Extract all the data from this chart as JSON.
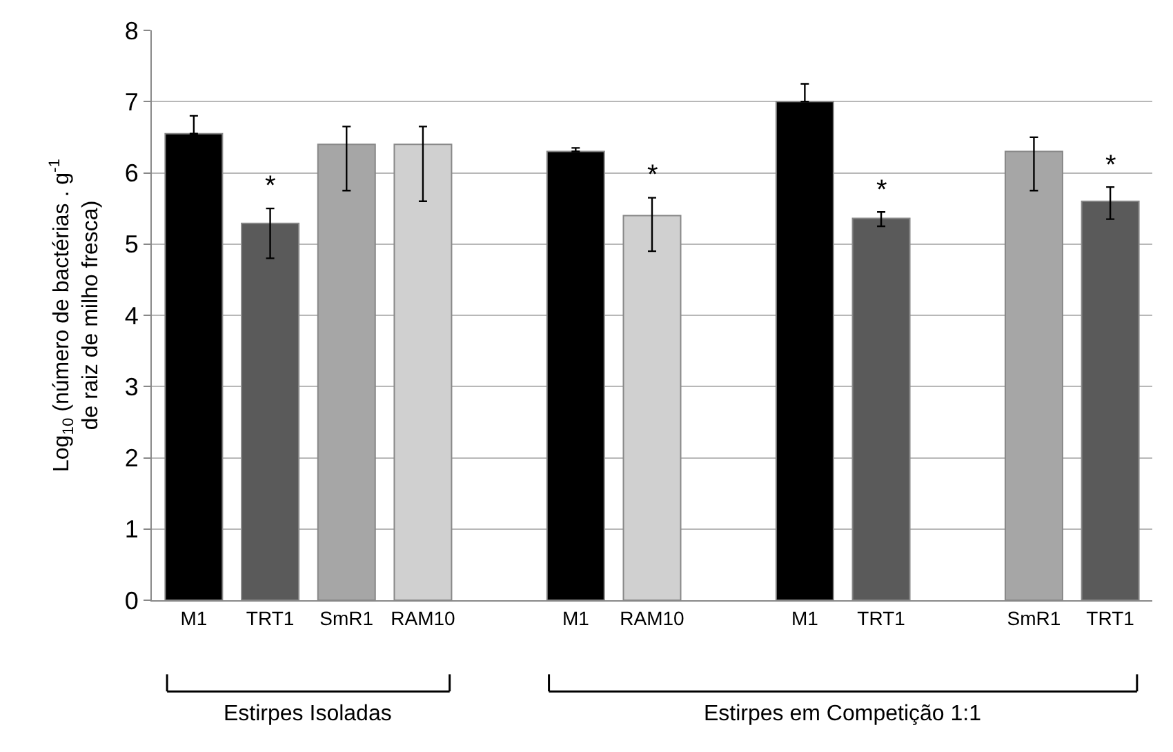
{
  "chart_data": {
    "type": "bar",
    "ylabel": "Log$_{10}$ (número de bactérias . g$^{-1}$ de raiz de milho fresca)",
    "categories": [
      "M1",
      "TRT1",
      "SmR1",
      "RAM10",
      null,
      "M1",
      "RAM10",
      null,
      "M1",
      "TRT1",
      null,
      "SmR1",
      "TRT1"
    ],
    "values": [
      6.55,
      5.29,
      6.4,
      6.4,
      null,
      6.3,
      5.4,
      null,
      7.0,
      5.36,
      null,
      6.3,
      5.6
    ],
    "colors": [
      "#000000",
      "#5a5a5a",
      "#a6a6a6",
      "#d0d0d0",
      null,
      "#000000",
      "#d0d0d0",
      null,
      "#000000",
      "#5a5a5a",
      null,
      "#a6a6a6",
      "#5a5a5a"
    ],
    "errors": [
      [
        6.55,
        6.8
      ],
      [
        4.8,
        5.5
      ],
      [
        5.75,
        6.65
      ],
      [
        5.6,
        6.65
      ],
      null,
      [
        6.3,
        6.35
      ],
      [
        4.9,
        5.65
      ],
      null,
      [
        7.0,
        7.25
      ],
      [
        5.25,
        5.45
      ],
      null,
      [
        5.75,
        6.5
      ],
      [
        5.35,
        5.8
      ]
    ],
    "value_labels": [
      null,
      "*",
      null,
      null,
      null,
      null,
      "*",
      null,
      null,
      "*",
      null,
      null,
      "*"
    ],
    "annotations": [
      "Estirpes Isoladas",
      "Estirpes em Competição 1:1"
    ],
    "ylim": [
      0,
      8
    ],
    "yticks": [
      0,
      1,
      2,
      3,
      4,
      5,
      6,
      7,
      8
    ],
    "grid": "y"
  }
}
